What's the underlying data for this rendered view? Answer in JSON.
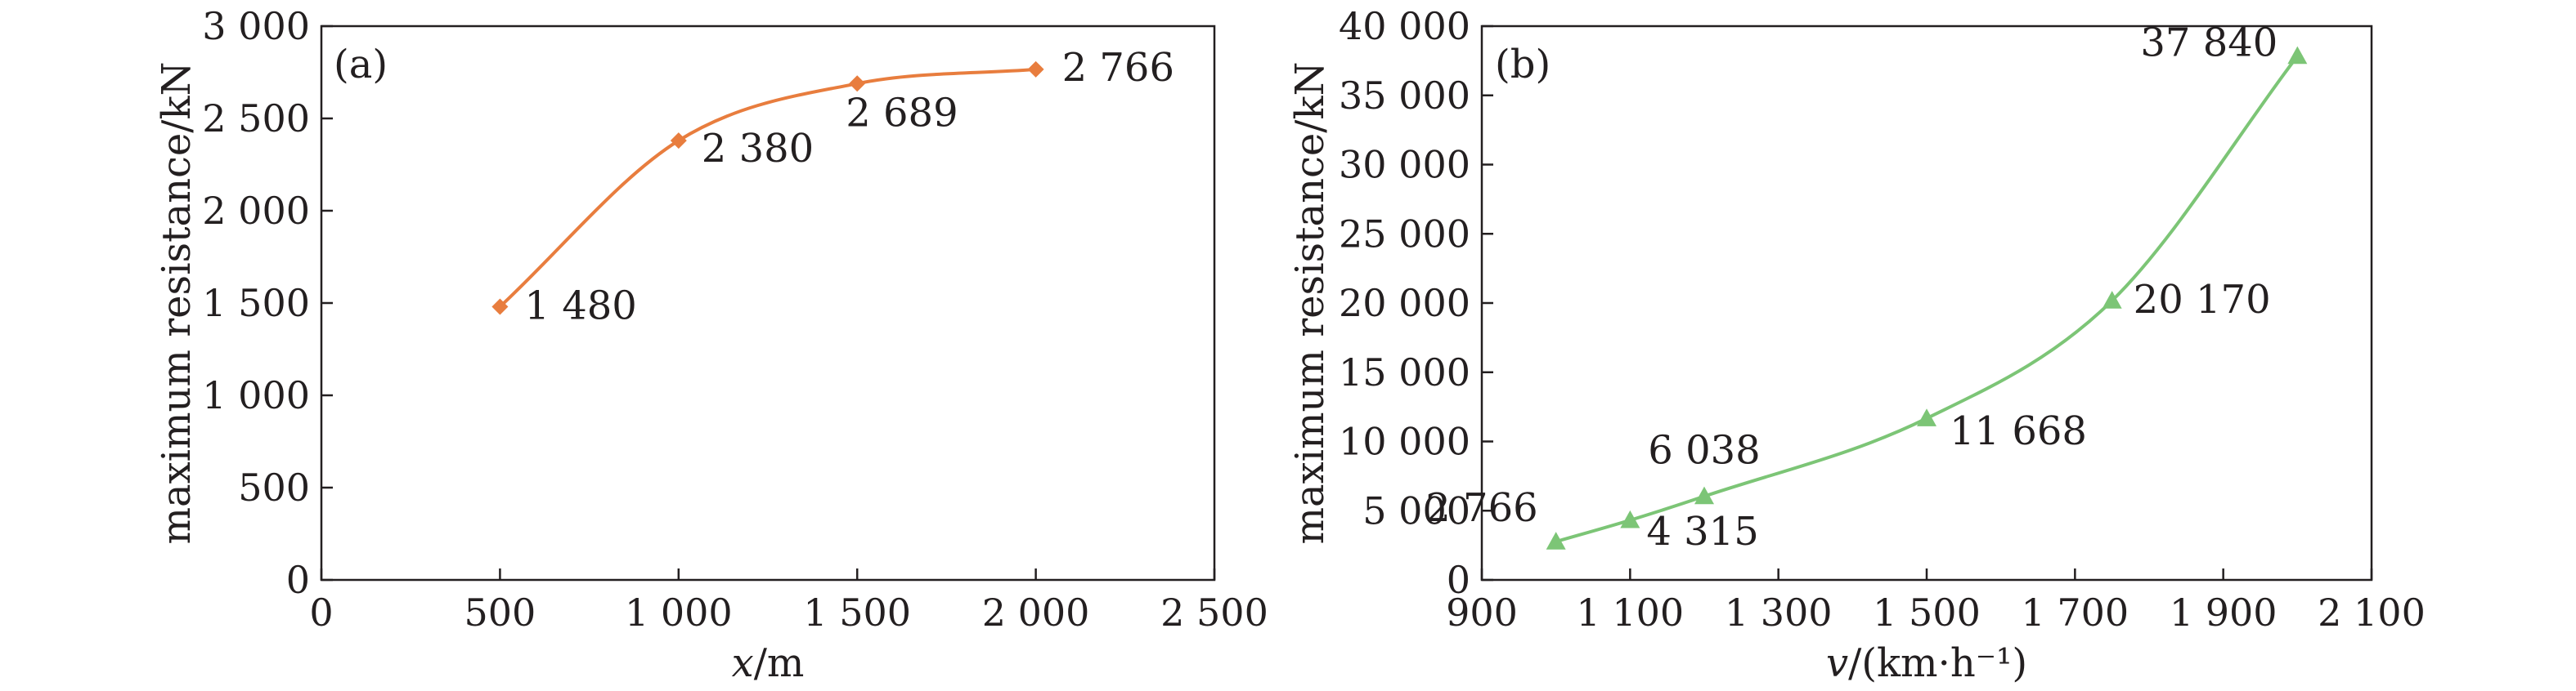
{
  "chart_data": [
    {
      "type": "line",
      "panel_label": "(a)",
      "xlabel": "x/m",
      "ylabel": "maximum resistance/kN",
      "xlim": [
        0,
        2500
      ],
      "ylim": [
        0,
        3000
      ],
      "xticks": [
        0,
        500,
        1000,
        1500,
        2000,
        2500
      ],
      "yticks": [
        0,
        500,
        1000,
        1500,
        2000,
        2500,
        3000
      ],
      "xtick_labels": [
        "0",
        "500",
        "1 000",
        "1 500",
        "2 000",
        "2 500"
      ],
      "ytick_labels": [
        "0",
        "500",
        "1 000",
        "1 500",
        "2 000",
        "2 500",
        "3 000"
      ],
      "grid": false,
      "series": [
        {
          "marker": "diamond",
          "color": "#e87d3e",
          "x": [
            500,
            1000,
            1500,
            2000
          ],
          "y": [
            1480,
            2380,
            2689,
            2766
          ],
          "labels": [
            "1 480",
            "2 380",
            "2 689",
            "2 766"
          ]
        }
      ]
    },
    {
      "type": "line",
      "panel_label": "(b)",
      "xlabel": "v/(km·h⁻¹)",
      "ylabel": "maximum resistance/kN",
      "xlim": [
        900,
        2100
      ],
      "ylim": [
        0,
        40000
      ],
      "xticks": [
        900,
        1100,
        1300,
        1500,
        1700,
        1900,
        2100
      ],
      "yticks": [
        0,
        5000,
        10000,
        15000,
        20000,
        25000,
        30000,
        35000,
        40000
      ],
      "xtick_labels": [
        "900",
        "1 100",
        "1 300",
        "1 500",
        "1 700",
        "1 900",
        "2 100"
      ],
      "ytick_labels": [
        "0",
        "5 000",
        "10 000",
        "15 000",
        "20 000",
        "25 000",
        "30 000",
        "35 000",
        "40 000"
      ],
      "grid": false,
      "series": [
        {
          "marker": "triangle",
          "color": "#7cc576",
          "x": [
            1000,
            1100,
            1200,
            1500,
            1750,
            2000
          ],
          "y": [
            2766,
            4315,
            6038,
            11668,
            20170,
            37840
          ],
          "labels": [
            "2 766",
            "4 315",
            "6 038",
            "11 668",
            "20 170",
            "37 840"
          ]
        }
      ]
    }
  ]
}
